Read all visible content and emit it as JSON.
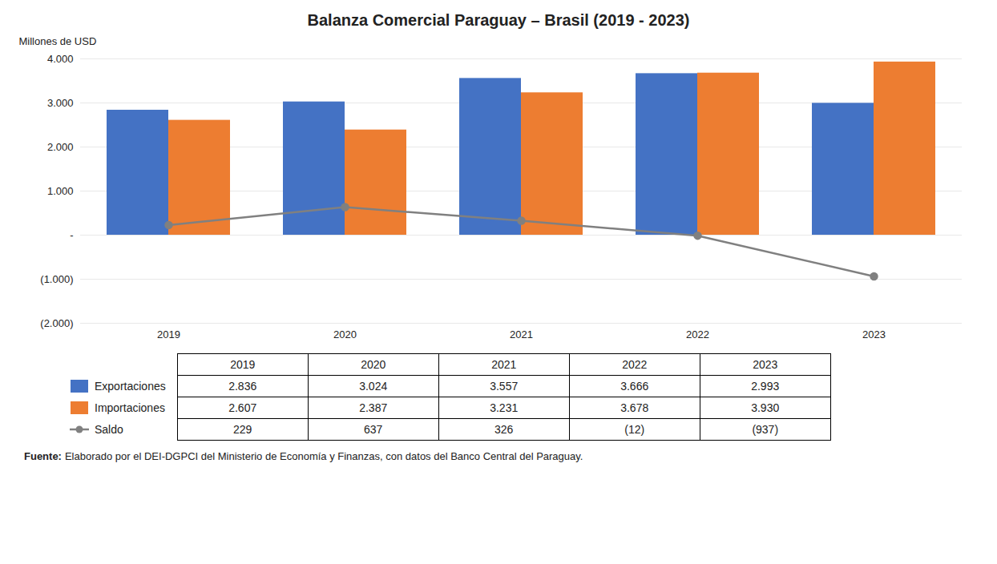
{
  "chart_data": {
    "type": "bar",
    "title": "Balanza Comercial Paraguay – Brasil (2019 - 2023)",
    "ylabel": "Millones de USD",
    "categories": [
      "2019",
      "2020",
      "2021",
      "2022",
      "2023"
    ],
    "series": [
      {
        "name": "Exportaciones",
        "type": "bar",
        "color": "#4472C4",
        "values": [
          2836,
          3024,
          3557,
          3666,
          2993
        ],
        "value_labels": [
          "2.836",
          "3.024",
          "3.557",
          "3.666",
          "2.993"
        ]
      },
      {
        "name": "Importaciones",
        "type": "bar",
        "color": "#ED7D31",
        "values": [
          2607,
          2387,
          3231,
          3678,
          3930
        ],
        "value_labels": [
          "2.607",
          "2.387",
          "3.231",
          "3.678",
          "3.930"
        ]
      },
      {
        "name": "Saldo",
        "type": "line",
        "color": "#808080",
        "marker": "circle",
        "values": [
          229,
          637,
          326,
          -12,
          -937
        ],
        "value_labels": [
          "229",
          "637",
          "326",
          "(12)",
          "(937)"
        ]
      }
    ],
    "ylim": [
      -2000,
      4000
    ],
    "yticks": [
      {
        "value": -2000,
        "label": "(2.000)"
      },
      {
        "value": -1000,
        "label": "(1.000)"
      },
      {
        "value": 0,
        "label": "-"
      },
      {
        "value": 1000,
        "label": "1.000"
      },
      {
        "value": 2000,
        "label": "2.000"
      },
      {
        "value": 3000,
        "label": "3.000"
      },
      {
        "value": 4000,
        "label": "4.000"
      }
    ],
    "grid": true,
    "annotations": [
      "Fuente:",
      "Elaborado por el DEI-DGPCI del Ministerio de Economía y Finanzas, con datos del Banco Central del Paraguay."
    ]
  }
}
